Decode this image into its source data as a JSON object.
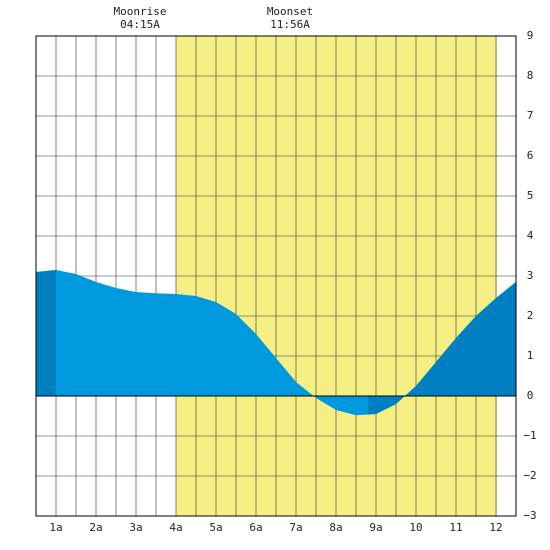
{
  "chart_data": {
    "type": "area",
    "annotations": [
      {
        "label": "Moonrise",
        "time": "04:15A"
      },
      {
        "label": "Moonset",
        "time": "11:56A"
      }
    ],
    "x": [
      0,
      1,
      2,
      3,
      4,
      5,
      6,
      7,
      8,
      9,
      10,
      11,
      12,
      13,
      14,
      15,
      16,
      17,
      18,
      19,
      20,
      21,
      22,
      23,
      24
    ],
    "series": [
      {
        "color": "#0099dd",
        "values": [
          3.1,
          3.15,
          3.05,
          2.85,
          2.7,
          2.6,
          2.57,
          2.55,
          2.5,
          2.35,
          2.05,
          1.55,
          0.95,
          0.35,
          -0.05,
          -0.35,
          -0.48,
          -0.45,
          -0.2,
          0.25,
          0.85,
          1.45,
          2.0,
          2.45,
          2.85
        ]
      }
    ],
    "night_color": "#0080c0",
    "night_spans": [
      [
        0,
        1
      ],
      [
        16.6,
        24
      ]
    ],
    "daylight_color": "#f5ef84",
    "daylight_span": [
      7,
      23.05
    ],
    "xlim": [
      0,
      24
    ],
    "xticks": [
      {
        "value": 1,
        "label": "1a"
      },
      {
        "value": 3,
        "label": "2a"
      },
      {
        "value": 5,
        "label": "3a"
      },
      {
        "value": 7,
        "label": "4a"
      },
      {
        "value": 9,
        "label": "5a"
      },
      {
        "value": 11,
        "label": "6a"
      },
      {
        "value": 13,
        "label": "7a"
      },
      {
        "value": 15,
        "label": "8a"
      },
      {
        "value": 17,
        "label": "9a"
      },
      {
        "value": 19,
        "label": "10"
      },
      {
        "value": 21,
        "label": "11"
      },
      {
        "value": 23,
        "label": "12"
      }
    ],
    "ylim": [
      -3,
      9
    ],
    "yticks": [
      {
        "value": -3,
        "label": "−3"
      },
      {
        "value": -2,
        "label": "−2"
      },
      {
        "value": -1,
        "label": "−1"
      },
      0,
      1,
      2,
      3,
      4,
      5,
      6,
      7,
      8,
      9
    ]
  }
}
